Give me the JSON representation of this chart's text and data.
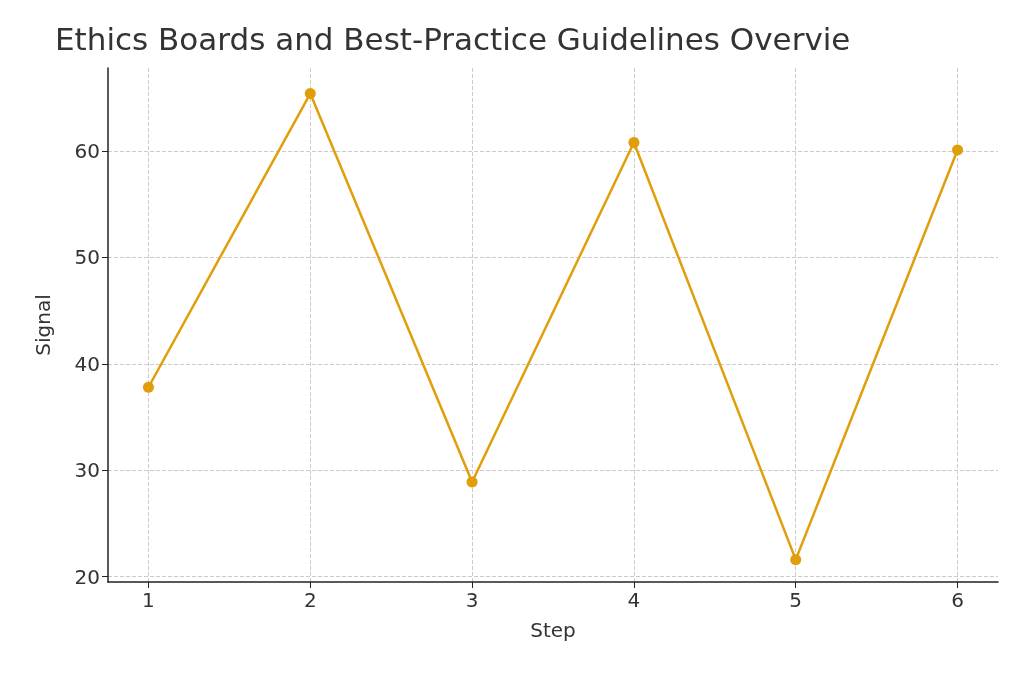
{
  "chart_data": {
    "type": "line",
    "title": "Ethics Boards and Best-Practice Guidelines Overvie",
    "xlabel": "Step",
    "ylabel": "Signal",
    "x": [
      1,
      2,
      3,
      4,
      5,
      6
    ],
    "series": [
      {
        "color": "#e09f0a",
        "values": [
          37.8,
          65.4,
          28.9,
          60.8,
          21.6,
          60.1
        ]
      }
    ],
    "xlim": [
      0.75,
      6.25
    ],
    "xticks": [
      1,
      2,
      3,
      4,
      5,
      6
    ],
    "ylim": [
      19.5,
      67.8
    ],
    "yticks": [
      20,
      30,
      40,
      50,
      60
    ],
    "grid": true,
    "marker": "circle",
    "line_style": "solid"
  }
}
